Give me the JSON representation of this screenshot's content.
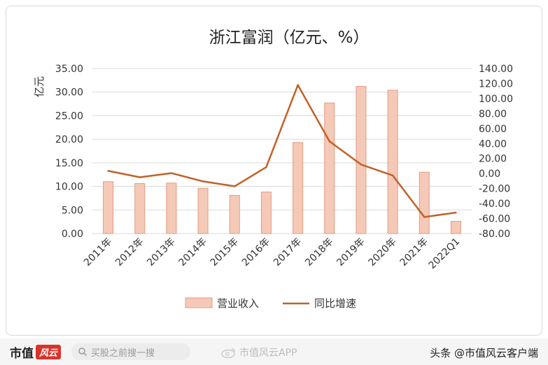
{
  "chart_data": {
    "type": "bar+line",
    "title": "浙江富润（亿元、%）",
    "ylabel": "亿元",
    "categories": [
      "2011年",
      "2012年",
      "2013年",
      "2014年",
      "2015年",
      "2016年",
      "2017年",
      "2018年",
      "2019年",
      "2020年",
      "2021年",
      "2022Q1"
    ],
    "series": [
      {
        "name": "营业收入",
        "type": "bar",
        "axis": "left",
        "values": [
          11.0,
          10.6,
          10.7,
          9.6,
          8.1,
          8.8,
          19.3,
          27.7,
          31.2,
          30.4,
          13.0,
          2.6
        ]
      },
      {
        "name": "同比增速",
        "type": "line",
        "axis": "right",
        "values": [
          3.5,
          -5.0,
          0.5,
          -10.5,
          -17.0,
          8.5,
          118.0,
          43.0,
          12.0,
          -2.5,
          -58.0,
          -52.0
        ]
      }
    ],
    "left_axis": {
      "ylim": [
        0,
        35
      ],
      "ticks": [
        "0.00",
        "5.00",
        "10.00",
        "15.00",
        "20.00",
        "25.00",
        "30.00",
        "35.00"
      ]
    },
    "right_axis": {
      "ylim": [
        -80,
        140
      ],
      "ticks": [
        "-80.00",
        "-60.00",
        "-40.00",
        "-20.00",
        "0.00",
        "20.00",
        "40.00",
        "60.00",
        "80.00",
        "100.00",
        "120.00",
        "140.00"
      ]
    },
    "grid": true,
    "legend": "bottom",
    "colors": {
      "bar_fill": "#f5c9b8",
      "bar_stroke": "#e59a7f",
      "line": "#c0622a",
      "grid": "#d9d9d9",
      "text": "#333333"
    }
  },
  "footer": {
    "brand_text": "市值",
    "brand_badge": "风云",
    "search_placeholder": "买股之前搜一搜",
    "weibo_text": "市值风云APP",
    "author": "头条 @市值风云客户端"
  }
}
